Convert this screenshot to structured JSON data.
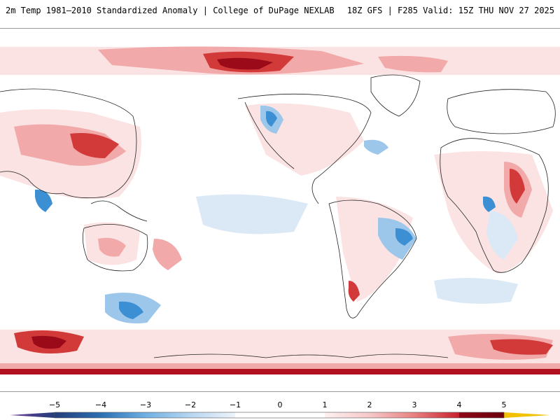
{
  "header": {
    "title": "2m Temp 1981–2010 Standardized Anomaly | College of DuPage NEXLAB",
    "run_info": "18Z GFS | F285 Valid: 15Z THU NOV 27 2025"
  },
  "colorbar": {
    "labels": [
      "−5",
      "−4",
      "−3",
      "−2",
      "−1",
      "0",
      "1",
      "2",
      "3",
      "4",
      "5"
    ],
    "colors": {
      "n5": "#6a3d9a",
      "n4": "#243d7a",
      "n3": "#3a8fd0",
      "n2": "#8fc0e8",
      "n1": "#d4e6f6",
      "zero": "#ffffff",
      "p1": "#fbe0e0",
      "p2": "#f0a5a5",
      "p3": "#d94848",
      "p4": "#b01020",
      "p5": "#7a0010",
      "over": "#f2c200"
    }
  },
  "map": {
    "projection": "global equirectangular, Pacific-centered",
    "palette": {
      "ocean": "#ffffff",
      "warm_light": "#fbe3e3",
      "warm_mid": "#f1a9a9",
      "warm_strong": "#d23a3a",
      "warm_extreme": "#9a0a18",
      "cool_light": "#dbe9f7",
      "cool_mid": "#9cc6ea",
      "cool_strong": "#3d8fd4",
      "coast": "#222222"
    }
  }
}
